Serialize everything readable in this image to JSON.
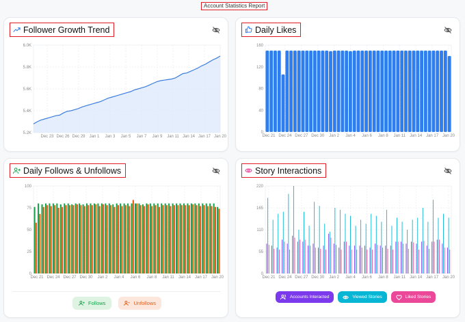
{
  "report": {
    "title": "Account Statistics Report"
  },
  "cards": {
    "follower": {
      "title": "Follower Growth Trend"
    },
    "likes": {
      "title": "Daily Likes"
    },
    "follows": {
      "title": "Daily Follows & Unfollows"
    },
    "story": {
      "title": "Story Interactions"
    }
  },
  "legends": {
    "follows": {
      "follows_label": "Follows",
      "unfollows_label": "Unfollows"
    },
    "story": {
      "accounts_label": "Accounts Interacted",
      "viewed_label": "Viewed Stories",
      "liked_label": "Liked Stories"
    }
  },
  "colors": {
    "follower_line": "#3b7ddd",
    "follower_fill": "#dbe8fb",
    "likes_bar": "#2f7ef0",
    "follows": "#16a34a",
    "unfollows": "#ea580c",
    "accounts": "#7c3aed",
    "viewed": "#06b6d4",
    "liked": "#ec4899"
  },
  "chart_data": [
    {
      "type": "area",
      "title": "Follower Growth Trend",
      "x_ticks": [
        "Dec 23",
        "Dec 26",
        "Dec 29",
        "Jan 1",
        "Jan 3",
        "Jan 5",
        "Jan 7",
        "Jan 9",
        "Jan 11",
        "Jan 14",
        "Jan 17",
        "Jan 20"
      ],
      "y_ticks": [
        "5.2K",
        "5.4K",
        "5.6K",
        "5.8K",
        "6.0K"
      ],
      "ylim": [
        5200,
        6000
      ],
      "values": [
        5280,
        5300,
        5315,
        5325,
        5335,
        5345,
        5355,
        5360,
        5380,
        5395,
        5400,
        5410,
        5420,
        5435,
        5445,
        5455,
        5465,
        5475,
        5485,
        5500,
        5515,
        5525,
        5535,
        5545,
        5555,
        5565,
        5575,
        5590,
        5600,
        5610,
        5620,
        5635,
        5650,
        5665,
        5675,
        5680,
        5685,
        5690,
        5700,
        5720,
        5740,
        5745,
        5760,
        5775,
        5790,
        5810,
        5825,
        5845,
        5865,
        5880,
        5900
      ],
      "grid": true
    },
    {
      "type": "bar",
      "title": "Daily Likes",
      "x_ticks": [
        "Dec 21",
        "Dec 24",
        "Dec 27",
        "Dec 30",
        "Jan 2",
        "Jan 4",
        "Jan 6",
        "Jan 8",
        "Jan 11",
        "Jan 14",
        "Jan 17",
        "Jan 20"
      ],
      "y_ticks": [
        "0",
        "40",
        "80",
        "120",
        "160"
      ],
      "ylim": [
        0,
        160
      ],
      "values": [
        150,
        150,
        150,
        150,
        106,
        150,
        150,
        150,
        150,
        150,
        150,
        150,
        150,
        150,
        150,
        150,
        149,
        150,
        150,
        150,
        150,
        149,
        150,
        150,
        150,
        150,
        150,
        150,
        150,
        150,
        150,
        150,
        150,
        150,
        150,
        150,
        150,
        150,
        150,
        150,
        150,
        150,
        150,
        150,
        150,
        150,
        140
      ],
      "grid": true
    },
    {
      "type": "bar",
      "title": "Daily Follows & Unfollows",
      "x_ticks": [
        "Dec 21",
        "Dec 24",
        "Dec 27",
        "Dec 30",
        "Jan 2",
        "Jan 4",
        "Jan 6",
        "Jan 8",
        "Jan 11",
        "Jan 14",
        "Jan 17",
        "Jan 20"
      ],
      "y_ticks": [
        "0",
        "25",
        "50",
        "75",
        "100"
      ],
      "ylim": [
        0,
        100
      ],
      "series": [
        {
          "name": "Follows",
          "values": [
            76,
            80,
            79,
            80,
            80,
            80,
            80,
            79,
            80,
            80,
            79,
            80,
            80,
            79,
            80,
            80,
            80,
            80,
            80,
            80,
            80,
            79,
            80,
            80,
            80,
            80,
            80,
            80,
            80,
            79,
            80,
            80,
            80,
            80,
            80,
            80,
            80,
            80,
            80,
            80,
            80,
            80,
            80,
            80,
            80,
            80,
            80,
            80,
            80,
            76
          ]
        },
        {
          "name": "Unfollows",
          "values": [
            58,
            68,
            76,
            78,
            77,
            78,
            75,
            76,
            78,
            78,
            78,
            79,
            78,
            77,
            78,
            78,
            79,
            77,
            79,
            78,
            78,
            76,
            78,
            77,
            78,
            77,
            84,
            80,
            78,
            77,
            79,
            77,
            78,
            76,
            78,
            78,
            77,
            78,
            78,
            78,
            78,
            78,
            79,
            78,
            77,
            78,
            77,
            77,
            76,
            74
          ]
        }
      ],
      "grid": true
    },
    {
      "type": "bar",
      "title": "Story Interactions",
      "x_ticks": [
        "Dec 21",
        "Dec 24",
        "Dec 27",
        "Dec 30",
        "Jan 2",
        "Jan 4",
        "Jan 6",
        "Jan 8",
        "Jan 11",
        "Jan 14",
        "Jan 17",
        "Jan 20"
      ],
      "y_ticks": [
        "0",
        "55",
        "110",
        "165",
        "220"
      ],
      "ylim": [
        0,
        220
      ],
      "series": [
        {
          "name": "Accounts Interacted",
          "values": [
            75,
            70,
            65,
            85,
            75,
            95,
            80,
            80,
            70,
            75,
            65,
            70,
            100,
            75,
            65,
            80,
            70,
            70,
            70,
            70,
            65,
            75,
            70,
            70,
            70,
            80,
            80,
            75,
            80,
            75,
            80,
            70,
            80,
            85,
            75,
            65
          ]
        },
        {
          "name": "Viewed Stories",
          "values": [
            190,
            135,
            150,
            155,
            200,
            220,
            110,
            155,
            120,
            180,
            170,
            125,
            105,
            165,
            160,
            150,
            145,
            120,
            135,
            125,
            150,
            145,
            130,
            160,
            120,
            140,
            130,
            110,
            135,
            140,
            165,
            130,
            185,
            140,
            150,
            140
          ]
        },
        {
          "name": "Liked Stories",
          "values": [
            72,
            62,
            60,
            80,
            60,
            90,
            85,
            85,
            70,
            65,
            62,
            60,
            90,
            72,
            60,
            80,
            60,
            60,
            65,
            60,
            60,
            72,
            65,
            62,
            60,
            80,
            75,
            62,
            78,
            60,
            82,
            62,
            80,
            85,
            65,
            60
          ]
        }
      ],
      "grid": true
    }
  ]
}
